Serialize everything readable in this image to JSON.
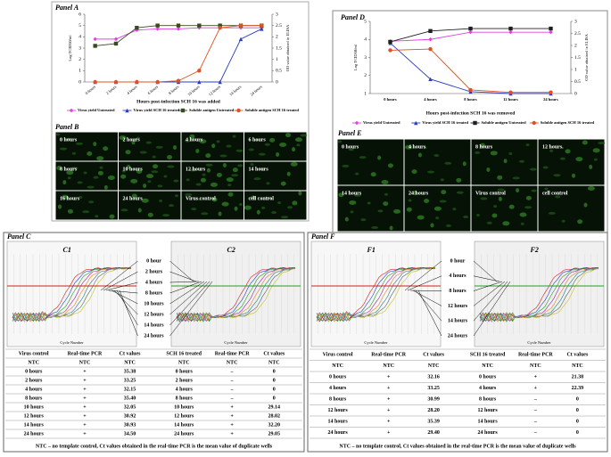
{
  "chart_data": [
    {
      "type": "line",
      "title": "Panel A",
      "categories": [
        "0 hours",
        "2 hours",
        "4 hours",
        "6 hours",
        "8 hours",
        "10 hours",
        "12 hours",
        "14 hours",
        "24 hours"
      ],
      "x_label": "Hours post-infection SCH 16 was added",
      "y_label": "Log TCID50/ml",
      "y2_label": "OD value obtained in ELISA",
      "ylim": [
        0,
        6
      ],
      "yticks": [
        0,
        1,
        2,
        3,
        4,
        5,
        6
      ],
      "y2lim": [
        0,
        3
      ],
      "y2ticks": [
        0,
        0.5,
        1,
        1.5,
        2,
        2.5,
        3
      ],
      "grid": false,
      "series": [
        {
          "name": "Virus yield Untreated",
          "color": "#e040e0",
          "marker": "diamond",
          "values": [
            3.8,
            3.8,
            4.6,
            4.7,
            4.7,
            4.8,
            4.8,
            4.8,
            4.8
          ]
        },
        {
          "name": "Virus yield SCH 16 treated",
          "color": "#2a3cc0",
          "marker": "triangle",
          "values": [
            0,
            0,
            0,
            0,
            0,
            0,
            0,
            3.8,
            4.7
          ]
        },
        {
          "name": "Soluble antigen Untreated",
          "color": "#3a4a20",
          "marker": "square",
          "axis": "y2",
          "values": [
            1.6,
            1.7,
            2.4,
            2.5,
            2.5,
            2.5,
            2.5,
            2.5,
            2.5
          ]
        },
        {
          "name": "Soluble antigen SCH 16 treated",
          "color": "#e05020",
          "marker": "circle",
          "axis": "y2",
          "values": [
            0,
            0,
            0,
            0,
            0.05,
            0.5,
            2.4,
            2.5,
            2.5
          ]
        }
      ]
    },
    {
      "type": "line",
      "title": "Panel D",
      "categories": [
        "0 hours",
        "4 hours",
        "8 hours",
        "12 hours",
        "24 hours"
      ],
      "x_label": "Hours post-infection SCH 16 was removed",
      "y_label": "Log TCID50/ml",
      "y2_label": "OD value obtained in ELISA",
      "ylim": [
        1,
        5
      ],
      "yticks": [
        1,
        2,
        3,
        4,
        5
      ],
      "y2lim": [
        0,
        3
      ],
      "y2ticks": [
        0,
        0.5,
        1,
        1.5,
        2,
        2.5,
        3
      ],
      "grid": false,
      "series": [
        {
          "name": "Virus yield Untreated",
          "color": "#e040e0",
          "marker": "diamond",
          "values": [
            3.9,
            4,
            4.4,
            4.4,
            4.4
          ]
        },
        {
          "name": "Virus yield SCH 16 treated",
          "color": "#2a3cc0",
          "marker": "triangle",
          "values": [
            3.8,
            1.8,
            1.1,
            1,
            1
          ]
        },
        {
          "name": "Soluble antigen Untreated",
          "color": "#202020",
          "marker": "square",
          "axis": "y2",
          "values": [
            2.15,
            2.6,
            2.7,
            2.7,
            2.7
          ]
        },
        {
          "name": "Soluble antigen SCH 16 treated",
          "color": "#e05020",
          "marker": "circle",
          "axis": "y2",
          "values": [
            1.8,
            1.85,
            0.15,
            0.05,
            0.05
          ]
        }
      ]
    }
  ],
  "panel_b": {
    "title": "Panel B",
    "images": [
      "0 hours",
      "2 hours",
      "4 hours",
      "6 hours",
      "8 hours",
      "10 hours",
      "12 hours",
      "14 hours",
      "16 hours",
      "24 hours",
      "Virus control",
      "cell control"
    ]
  },
  "panel_e": {
    "title": "Panel E",
    "images": [
      "0 hours",
      "4 hours",
      "8 hours",
      "12 hours.",
      "14 hours",
      "24 hours",
      "Virus control",
      "cell control"
    ]
  },
  "panel_c": {
    "title": "Panel C",
    "plots": [
      "C1",
      "C2"
    ],
    "axis_label": "Cycle Number",
    "time_labels": [
      "0 hour",
      "2 hours",
      "4 hours",
      "8 hours",
      "10 hours",
      "12 hours",
      "14 hours",
      "24 hours"
    ],
    "table": {
      "header": [
        "Virus control",
        "Real-time PCR",
        "Ct values",
        "SCH 16 treated",
        "Real-time PCR",
        "Ct values"
      ],
      "rows": [
        [
          "NTC",
          "NTC",
          "NTC",
          "NTC",
          "NTC",
          "NTC"
        ],
        [
          "0 hours",
          "+",
          "35.38",
          "0 hours",
          "–",
          "0"
        ],
        [
          "2 hours",
          "+",
          "33.25",
          "2 hours",
          "–",
          "0"
        ],
        [
          "4 hours",
          "+",
          "32.15",
          "4 hours",
          "–",
          "0"
        ],
        [
          "8 hours",
          "+",
          "35.40",
          "8 hours",
          "–",
          "0"
        ],
        [
          "10 hours",
          "+",
          "32.05",
          "10 hours",
          "+",
          "29.14"
        ],
        [
          "12 hours",
          "+",
          "30.92",
          "12 hours",
          "+",
          "28.02"
        ],
        [
          "14 hours",
          "+",
          "30.93",
          "14 hours",
          "+",
          "32.20"
        ],
        [
          "24 hours",
          "+",
          "34.50",
          "24 hours",
          "+",
          "29.05"
        ]
      ]
    },
    "footnote": "NTC – no template control, Ct values obtained in the real-time PCR is the mean value of duplicate wells"
  },
  "panel_f": {
    "title": "Panel F",
    "plots": [
      "F1",
      "F2"
    ],
    "axis_label": "Cycle Number",
    "time_labels": [
      "0 hour",
      "4 hours",
      "8 hours",
      "12 hours",
      "14 hours",
      "24 hours"
    ],
    "table": {
      "header": [
        "Virus control",
        "Real-time PCR",
        "Ct values",
        "SCH 16 treated",
        "Real-time PCR",
        "Ct values"
      ],
      "rows": [
        [
          "NTC",
          "NTC",
          "NTC",
          "NTC",
          "NTC",
          "NTC"
        ],
        [
          "0 hours",
          "+",
          "32.16",
          "0 hours",
          "+",
          "21.38"
        ],
        [
          "4 hours",
          "+",
          "33.25",
          "4 hours",
          "+",
          "22.39"
        ],
        [
          "8 hours",
          "+",
          "30.99",
          "8 hours",
          "–",
          "0"
        ],
        [
          "12 hours",
          "+",
          "28.20",
          "12 hours",
          "–",
          "0"
        ],
        [
          "14 hours",
          "+",
          "35.39",
          "14 hours",
          "–",
          "0"
        ],
        [
          "24 hours",
          "+",
          "29.40",
          "24 hours",
          "–",
          "0"
        ]
      ]
    },
    "footnote": "NTC – no template control, Ct values obtained in the real-time PCR is the mean value of duplicate wells"
  }
}
